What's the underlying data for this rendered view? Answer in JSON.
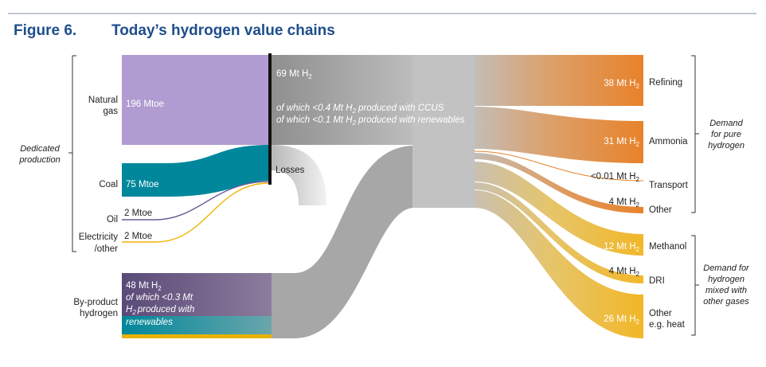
{
  "figure": {
    "number": "Figure 6.",
    "title": "Today’s hydrogen value chains"
  },
  "groups": {
    "dedicated": [
      "Dedicated",
      "production"
    ],
    "pure": [
      "Demand",
      "for pure",
      "hydrogen"
    ],
    "mixed": [
      "Demand for",
      "hydrogen",
      "mixed with",
      "other gases"
    ]
  },
  "sources": {
    "natural_gas": {
      "name": [
        "Natural",
        "gas"
      ],
      "value": "196 Mtoe"
    },
    "coal": {
      "name": "Coal",
      "value": "75 Mtoe"
    },
    "oil": {
      "name": "Oil",
      "value": "2 Mtoe"
    },
    "electricity": {
      "name": [
        "Electricity",
        "/other"
      ],
      "value": "2 Mtoe"
    },
    "byproduct": {
      "name": [
        "By-product",
        "hydrogen"
      ],
      "value": "48 Mt H",
      "note": [
        "of which <0.3 Mt",
        "H",
        "produced with",
        "renewables"
      ]
    }
  },
  "losses": "Losses",
  "dedicated_output": {
    "value": "69 Mt H",
    "note1": "of which <0.4 Mt H",
    "note1_tail": "produced with CCUS",
    "note2": "of which <0.1 Mt H",
    "note2_tail": "produced with renewables"
  },
  "subscript": "2",
  "demands": {
    "refining": {
      "value": "38 Mt H",
      "name": "Refining"
    },
    "ammonia": {
      "value": "31 Mt H",
      "name": "Ammonia"
    },
    "transport": {
      "value": "<0.01 Mt H",
      "name": "Transport"
    },
    "other": {
      "value": "4 Mt H",
      "name": "Other"
    },
    "methanol": {
      "value": "12 Mt H",
      "name": "Methanol"
    },
    "dri": {
      "value": "4 Mt H",
      "name": "DRI"
    },
    "other_heat": {
      "value": "26 Mt H",
      "name": [
        "Other",
        "e.g. heat"
      ]
    }
  },
  "colors": {
    "title": "#1f4e8c",
    "natural_gas": "#b19cd1",
    "coal": "#00879b",
    "oil": "#6a5a9a",
    "electricity": "#f0b400",
    "grey": "#9b9b9b",
    "pure_demand": "#e8822a",
    "mixed_demand": "#f2b728"
  }
}
